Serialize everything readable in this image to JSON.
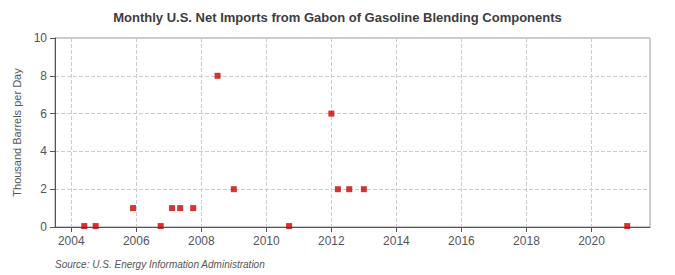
{
  "chart_data": {
    "type": "scatter",
    "title": "Monthly U.S. Net Imports from Gabon of Gasoline Blending Components",
    "ylabel": "Thousand Barrels per Day",
    "annotation": "Source: U.S. Energy Information Administration",
    "x": [
      2004.4,
      2004.75,
      2005.9,
      2006.75,
      2007.1,
      2007.35,
      2007.75,
      2008.5,
      2009.0,
      2010.7,
      2012.0,
      2012.2,
      2012.55,
      2013.0,
      2021.1
    ],
    "values": [
      0.05,
      0.05,
      1.0,
      0.05,
      1.0,
      1.0,
      1.0,
      8.0,
      2.0,
      0.05,
      6.0,
      2.0,
      2.0,
      2.0,
      0.05
    ],
    "color": "#cc0000",
    "marker": "square",
    "xlim": [
      2003.5,
      2021.8
    ],
    "xticks": [
      2004,
      2006,
      2008,
      2010,
      2012,
      2014,
      2016,
      2018,
      2020
    ],
    "ylim": [
      0,
      10
    ],
    "yticks": [
      0,
      2,
      4,
      6,
      8,
      10
    ],
    "grid": true
  }
}
